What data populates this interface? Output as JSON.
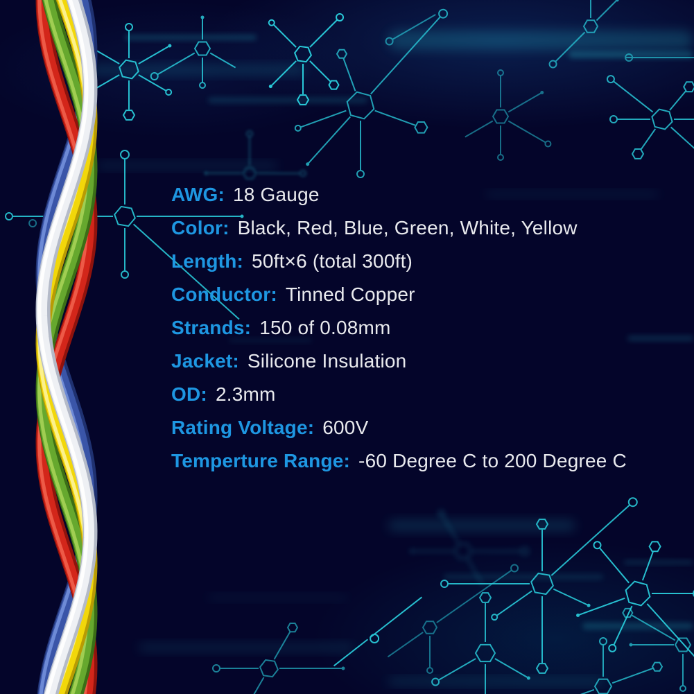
{
  "page": {
    "background_color": "#04052a",
    "description": "Product specification graphic for 18 AWG silicone hook-up wire"
  },
  "specs": {
    "label_color": "#1e97e2",
    "value_color": "#e9eaee",
    "rows": [
      {
        "label": "AWG:",
        "value": "18 Gauge"
      },
      {
        "label": "Color:",
        "value": "Black, Red, Blue, Green, White, Yellow"
      },
      {
        "label": "Length:",
        "value": "50ft×6 (total 300ft)"
      },
      {
        "label": "Conductor:",
        "value": "Tinned Copper"
      },
      {
        "label": "Strands:",
        "value": "150 of 0.08mm"
      },
      {
        "label": "Jacket:",
        "value": "Silicone Insulation"
      },
      {
        "label": "OD:",
        "value": "2.3mm"
      },
      {
        "label": "Rating Voltage:",
        "value": "600V"
      },
      {
        "label": "Temperture Range:",
        "value": "-60 Degree C to 200 Degree C"
      }
    ]
  },
  "decor": {
    "circuit_color": "#2bd4e2"
  },
  "wires": {
    "visible_strand_colors": [
      "red",
      "blue",
      "green",
      "yellow",
      "white"
    ],
    "palette": {
      "red": {
        "dark": "#8f130d",
        "main": "#d3261a",
        "light": "#f0604c"
      },
      "blue": {
        "dark": "#1f3170",
        "main": "#3a55a8",
        "light": "#7390da"
      },
      "green": {
        "dark": "#3b6e16",
        "main": "#66a82e",
        "light": "#a6d257"
      },
      "yellow": {
        "dark": "#b89b04",
        "main": "#f2d70a",
        "light": "#fdf49a"
      },
      "white": {
        "dark": "#b4bac8",
        "main": "#eef0f4",
        "light": "#ffffff"
      }
    }
  }
}
